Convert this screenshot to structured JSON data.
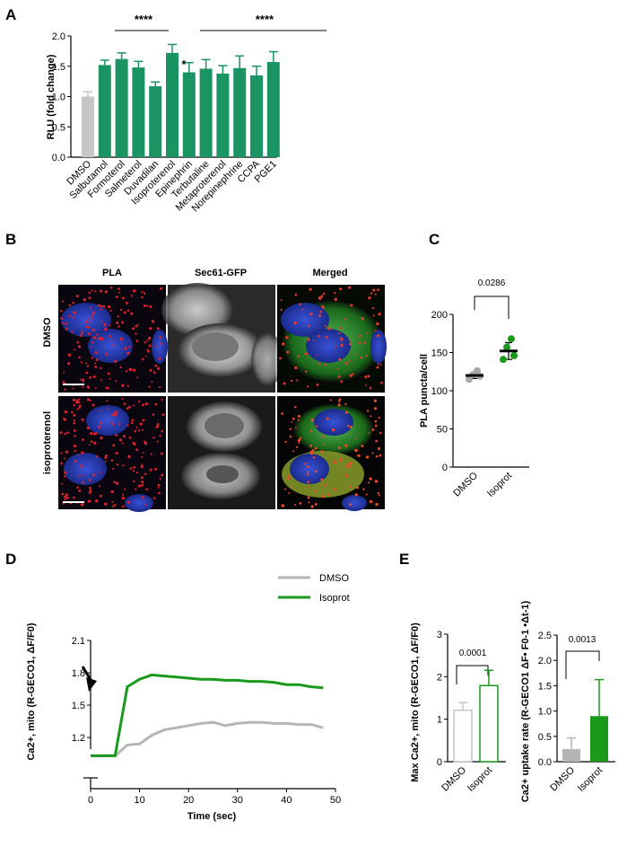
{
  "colors": {
    "green": "#1b9463",
    "gray": "#c6c6c6",
    "bright_green": "#1a9a1a",
    "dark_gray": "#a8a8a8",
    "micro_gray_bg": "#3a3a3a"
  },
  "panels": {
    "a": "A",
    "b": "B",
    "c": "C",
    "d": "D",
    "e": "E"
  },
  "chart_a": {
    "ylabel": "RLU (fold change)",
    "ticks": [
      "0.0",
      "0.5",
      "1.0",
      "1.5",
      "2.0"
    ],
    "sig_left": "****",
    "sig_right": "****",
    "sig_single": "*"
  },
  "micro": {
    "col_titles": [
      "PLA",
      "Sec61-GFP",
      "Merged"
    ],
    "row_labels": [
      "DMSO",
      "isoproterenol"
    ]
  },
  "chart_c": {
    "ylabel": "PLA puncta/cell",
    "ticks": [
      "0",
      "50",
      "100",
      "150",
      "200"
    ],
    "pvalue": "0.0286"
  },
  "chart_d": {
    "ylabel": "Ca2+, mito (R-GECO1, ΔF/F0)",
    "xlabel": "Time (sec)",
    "yticks": [
      "1.2",
      "1.5",
      "1.8",
      "2.1"
    ],
    "xticks": [
      "0",
      "10",
      "20",
      "30",
      "40",
      "50"
    ]
  },
  "chart_e1": {
    "ylabel": "Max Ca2+, mito (R-GECO1, ΔF/F0)",
    "ticks": [
      "0",
      "1",
      "2",
      "3"
    ],
    "pvalue": "0.0001"
  },
  "chart_e2": {
    "ylabel": "Ca2+ uptake rate (R-GECO1 ΔF• F0-1 •Δt-1)",
    "ticks": [
      "0.0",
      "0.5",
      "1.0",
      "1.5",
      "2.0",
      "2.5"
    ],
    "pvalue": "0.0013"
  },
  "chart_data": [
    {
      "type": "bar",
      "title": "A",
      "categories": [
        "DMSO",
        "Salbutamol",
        "Formoterol",
        "Salmeterol",
        "Duvadilan",
        "Isoproterenol",
        "Epinephrin",
        "Terbutaline",
        "Metaproterenol",
        "Norepinephrine",
        "CCPA",
        "PGE1"
      ],
      "values": [
        1.0,
        1.52,
        1.62,
        1.48,
        1.17,
        1.72,
        1.4,
        1.46,
        1.38,
        1.47,
        1.35,
        1.57
      ],
      "errors": [
        0.08,
        0.08,
        0.1,
        0.1,
        0.07,
        0.14,
        0.16,
        0.15,
        0.13,
        0.2,
        0.15,
        0.17
      ],
      "ylabel": "RLU (fold change)",
      "ylim": [
        0,
        2.0
      ]
    },
    {
      "type": "scatter",
      "title": "C",
      "categories": [
        "DMSO",
        "Isoprot"
      ],
      "points": [
        [
          115,
          119,
          121,
          126
        ],
        [
          141,
          146,
          157,
          168
        ]
      ],
      "means": [
        120,
        152
      ],
      "sds": [
        4,
        11
      ],
      "ylabel": "PLA puncta/cell",
      "ylim": [
        0,
        200
      ]
    },
    {
      "type": "line",
      "title": "D",
      "xlabel": "Time (sec)",
      "ylabel": "Ca2+, mito (R-GECO1, ΔF/F0)",
      "xlim": [
        0,
        50
      ],
      "ylim": [
        1.0,
        2.1
      ],
      "series": [
        {
          "name": "DMSO",
          "x": [
            0,
            2.5,
            5,
            7.5,
            10,
            12.5,
            15,
            17.5,
            20,
            22.5,
            25,
            27.5,
            30,
            32.5,
            35,
            37.5,
            40,
            42.5,
            45,
            47.5
          ],
          "y": [
            1.03,
            1.03,
            1.03,
            1.13,
            1.14,
            1.22,
            1.27,
            1.29,
            1.31,
            1.33,
            1.34,
            1.31,
            1.33,
            1.34,
            1.34,
            1.33,
            1.33,
            1.32,
            1.32,
            1.29
          ]
        },
        {
          "name": "Isoprot",
          "x": [
            0,
            2.5,
            5,
            7.5,
            10,
            12.5,
            15,
            17.5,
            20,
            22.5,
            25,
            27.5,
            30,
            32.5,
            35,
            37.5,
            40,
            42.5,
            45,
            47.5
          ],
          "y": [
            1.03,
            1.03,
            1.03,
            1.67,
            1.74,
            1.78,
            1.77,
            1.76,
            1.75,
            1.74,
            1.74,
            1.73,
            1.73,
            1.72,
            1.72,
            1.71,
            1.69,
            1.69,
            1.67,
            1.66
          ]
        }
      ]
    },
    {
      "type": "bar",
      "title": "E",
      "categories": [
        "DMSO",
        "Isoprot"
      ],
      "values": [
        1.21,
        1.79
      ],
      "errors": [
        0.18,
        0.36
      ],
      "ylabel": "Max Ca2+, mito (R-GECO1, ΔF/F0)",
      "ylim": [
        0,
        3
      ]
    },
    {
      "type": "bar",
      "title": "E",
      "categories": [
        "DMSO",
        "Isoprot"
      ],
      "values": [
        0.25,
        0.9
      ],
      "errors": [
        0.22,
        0.72
      ],
      "ylabel": "Ca2+ uptake rate (R-GECO1 ΔF• F0-1 •Δt-1)",
      "ylim": [
        0,
        2.5
      ]
    }
  ]
}
